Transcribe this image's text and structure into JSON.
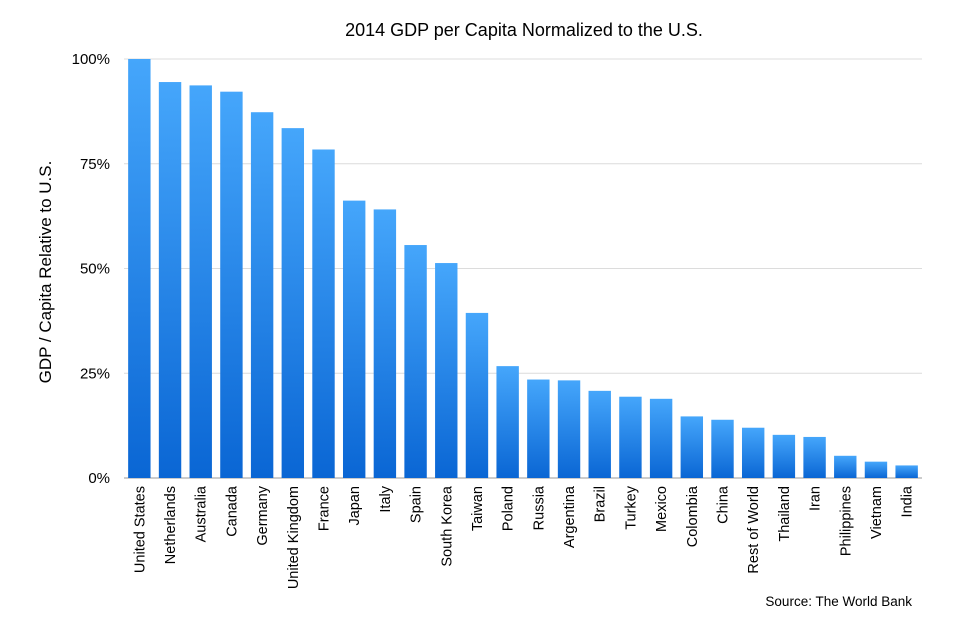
{
  "chart_data": {
    "type": "bar",
    "title": "2014 GDP per Capita Normalized to the U.S.",
    "xlabel": "",
    "ylabel": "GDP / Capita Relative to U.S.",
    "ylim": [
      0,
      100
    ],
    "yticks": [
      0,
      25,
      50,
      75,
      100
    ],
    "ytick_labels": [
      "0%",
      "25%",
      "50%",
      "75%",
      "100%"
    ],
    "grid": true,
    "source": "Source: The World Bank",
    "bar_color_top": "#45a6fb",
    "bar_color_bottom": "#0a66d4",
    "categories": [
      "United States",
      "Netherlands",
      "Australia",
      "Canada",
      "Germany",
      "United Kingdom",
      "France",
      "Japan",
      "Italy",
      "Spain",
      "South Korea",
      "Taiwan",
      "Poland",
      "Russia",
      "Argentina",
      "Brazil",
      "Turkey",
      "Mexico",
      "Colombia",
      "China",
      "Rest of World",
      "Thailand",
      "Iran",
      "Philippines",
      "Vietnam",
      "India"
    ],
    "values": [
      100,
      94.5,
      93.7,
      92.2,
      87.3,
      83.5,
      78.4,
      66.2,
      64.1,
      55.6,
      51.3,
      39.4,
      26.7,
      23.5,
      23.3,
      20.8,
      19.4,
      18.9,
      14.7,
      13.9,
      12.0,
      10.3,
      9.8,
      5.3,
      3.9,
      3.0
    ]
  }
}
